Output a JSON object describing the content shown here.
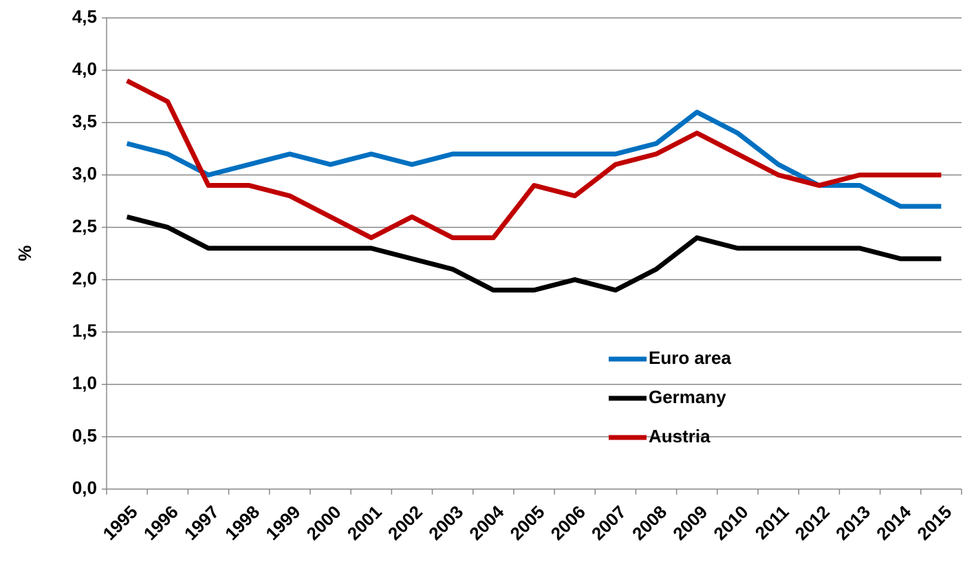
{
  "chart_data": {
    "type": "line",
    "y_label": "%",
    "categories": [
      "1995",
      "1996",
      "1997",
      "1998",
      "1999",
      "2000",
      "2001",
      "2002",
      "2003",
      "2004",
      "2005",
      "2006",
      "2007",
      "2008",
      "2009",
      "2010",
      "2011",
      "2012",
      "2013",
      "2014",
      "2015"
    ],
    "series": [
      {
        "name": "Euro area",
        "color": "#0070c0",
        "values": [
          3.3,
          3.2,
          3.0,
          3.1,
          3.2,
          3.1,
          3.2,
          3.1,
          3.2,
          3.2,
          3.2,
          3.2,
          3.2,
          3.3,
          3.6,
          3.4,
          3.1,
          2.9,
          2.9,
          2.7,
          2.7
        ]
      },
      {
        "name": "Germany",
        "color": "#000000",
        "values": [
          2.6,
          2.5,
          2.3,
          2.3,
          2.3,
          2.3,
          2.3,
          2.2,
          2.1,
          1.9,
          1.9,
          2.0,
          1.9,
          2.1,
          2.4,
          2.3,
          2.3,
          2.3,
          2.3,
          2.2,
          2.2
        ]
      },
      {
        "name": "Austria",
        "color": "#c00000",
        "values": [
          3.9,
          3.7,
          2.9,
          2.9,
          2.8,
          2.6,
          2.4,
          2.6,
          2.4,
          2.4,
          2.9,
          2.8,
          3.1,
          3.2,
          3.4,
          3.2,
          3.0,
          2.9,
          3.0,
          3.0,
          3.0
        ]
      }
    ],
    "ylim": [
      0,
      4.5
    ],
    "yticks": [
      {
        "value": 0,
        "label": "0,0"
      },
      {
        "value": 0.5,
        "label": "0,5"
      },
      {
        "value": 1,
        "label": "1,0"
      },
      {
        "value": 1.5,
        "label": "1,5"
      },
      {
        "value": 2,
        "label": "2,0"
      },
      {
        "value": 2.5,
        "label": "2,5"
      },
      {
        "value": 3,
        "label": "3,0"
      },
      {
        "value": 3.5,
        "label": "3,5"
      },
      {
        "value": 4,
        "label": "4,0"
      },
      {
        "value": 4.5,
        "label": "4,5"
      }
    ],
    "grid": true
  }
}
